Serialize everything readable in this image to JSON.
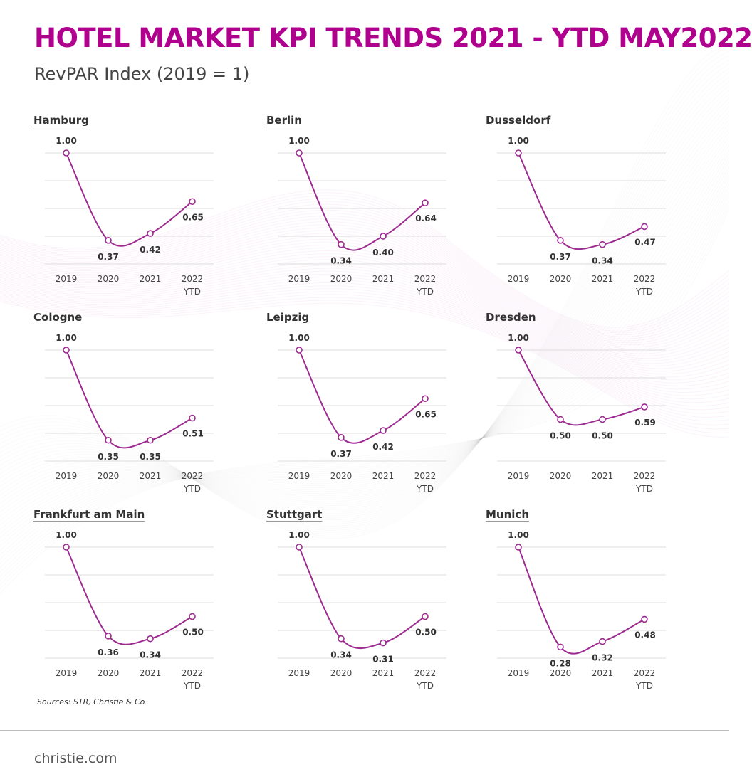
{
  "title": "HOTEL MARKET KPI TRENDS 2021 - YTD MAY2022",
  "subtitle": "RevPAR Index (2019 = 1)",
  "source": "Sources: STR, Christie & Co",
  "footer": "christie.com",
  "colors": {
    "title": "#b0008e",
    "line": "#9c2a8f",
    "grid": "#dddddd",
    "text": "#333333"
  },
  "chart_data": [
    {
      "type": "line",
      "title": "Hamburg",
      "categories": [
        "2019",
        "2020",
        "2021",
        "2022 YTD"
      ],
      "values": [
        1.0,
        0.37,
        0.42,
        0.65
      ],
      "labels": [
        "1.00",
        "0.37",
        "0.42",
        "0.65"
      ],
      "ylim": [
        0.2,
        1.0
      ],
      "grid": true
    },
    {
      "type": "line",
      "title": "Berlin",
      "categories": [
        "2019",
        "2020",
        "2021",
        "2022 YTD"
      ],
      "values": [
        1.0,
        0.34,
        0.4,
        0.64
      ],
      "labels": [
        "1.00",
        "0.34",
        "0.40",
        "0.64"
      ],
      "ylim": [
        0.2,
        1.0
      ],
      "grid": true
    },
    {
      "type": "line",
      "title": "Dusseldorf",
      "categories": [
        "2019",
        "2020",
        "2021",
        "2022 YTD"
      ],
      "values": [
        1.0,
        0.37,
        0.34,
        0.47
      ],
      "labels": [
        "1.00",
        "0.37",
        "0.34",
        "0.47"
      ],
      "ylim": [
        0.2,
        1.0
      ],
      "grid": true
    },
    {
      "type": "line",
      "title": "Cologne",
      "categories": [
        "2019",
        "2020",
        "2021",
        "2022 YTD"
      ],
      "values": [
        1.0,
        0.35,
        0.35,
        0.51
      ],
      "labels": [
        "1.00",
        "0.35",
        "0.35",
        "0.51"
      ],
      "ylim": [
        0.2,
        1.0
      ],
      "grid": true
    },
    {
      "type": "line",
      "title": "Leipzig",
      "categories": [
        "2019",
        "2020",
        "2021",
        "2022 YTD"
      ],
      "values": [
        1.0,
        0.37,
        0.42,
        0.65
      ],
      "labels": [
        "1.00",
        "0.37",
        "0.42",
        "0.65"
      ],
      "ylim": [
        0.2,
        1.0
      ],
      "grid": true
    },
    {
      "type": "line",
      "title": "Dresden",
      "categories": [
        "2019",
        "2020",
        "2021",
        "2022 YTD"
      ],
      "values": [
        1.0,
        0.5,
        0.5,
        0.59
      ],
      "labels": [
        "1.00",
        "0.50",
        "0.50",
        "0.59"
      ],
      "ylim": [
        0.2,
        1.0
      ],
      "grid": true
    },
    {
      "type": "line",
      "title": "Frankfurt am Main",
      "categories": [
        "2019",
        "2020",
        "2021",
        "2022 YTD"
      ],
      "values": [
        1.0,
        0.36,
        0.34,
        0.5
      ],
      "labels": [
        "1.00",
        "0.36",
        "0.34",
        "0.50"
      ],
      "ylim": [
        0.2,
        1.0
      ],
      "grid": true
    },
    {
      "type": "line",
      "title": "Stuttgart",
      "categories": [
        "2019",
        "2020",
        "2021",
        "2022 YTD"
      ],
      "values": [
        1.0,
        0.34,
        0.31,
        0.5
      ],
      "labels": [
        "1.00",
        "0.34",
        "0.31",
        "0.50"
      ],
      "ylim": [
        0.2,
        1.0
      ],
      "grid": true
    },
    {
      "type": "line",
      "title": "Munich",
      "categories": [
        "2019",
        "2020",
        "2021",
        "2022 YTD"
      ],
      "values": [
        1.0,
        0.28,
        0.32,
        0.48
      ],
      "labels": [
        "1.00",
        "0.28",
        "0.32",
        "0.48"
      ],
      "ylim": [
        0.2,
        1.0
      ],
      "grid": true
    }
  ]
}
